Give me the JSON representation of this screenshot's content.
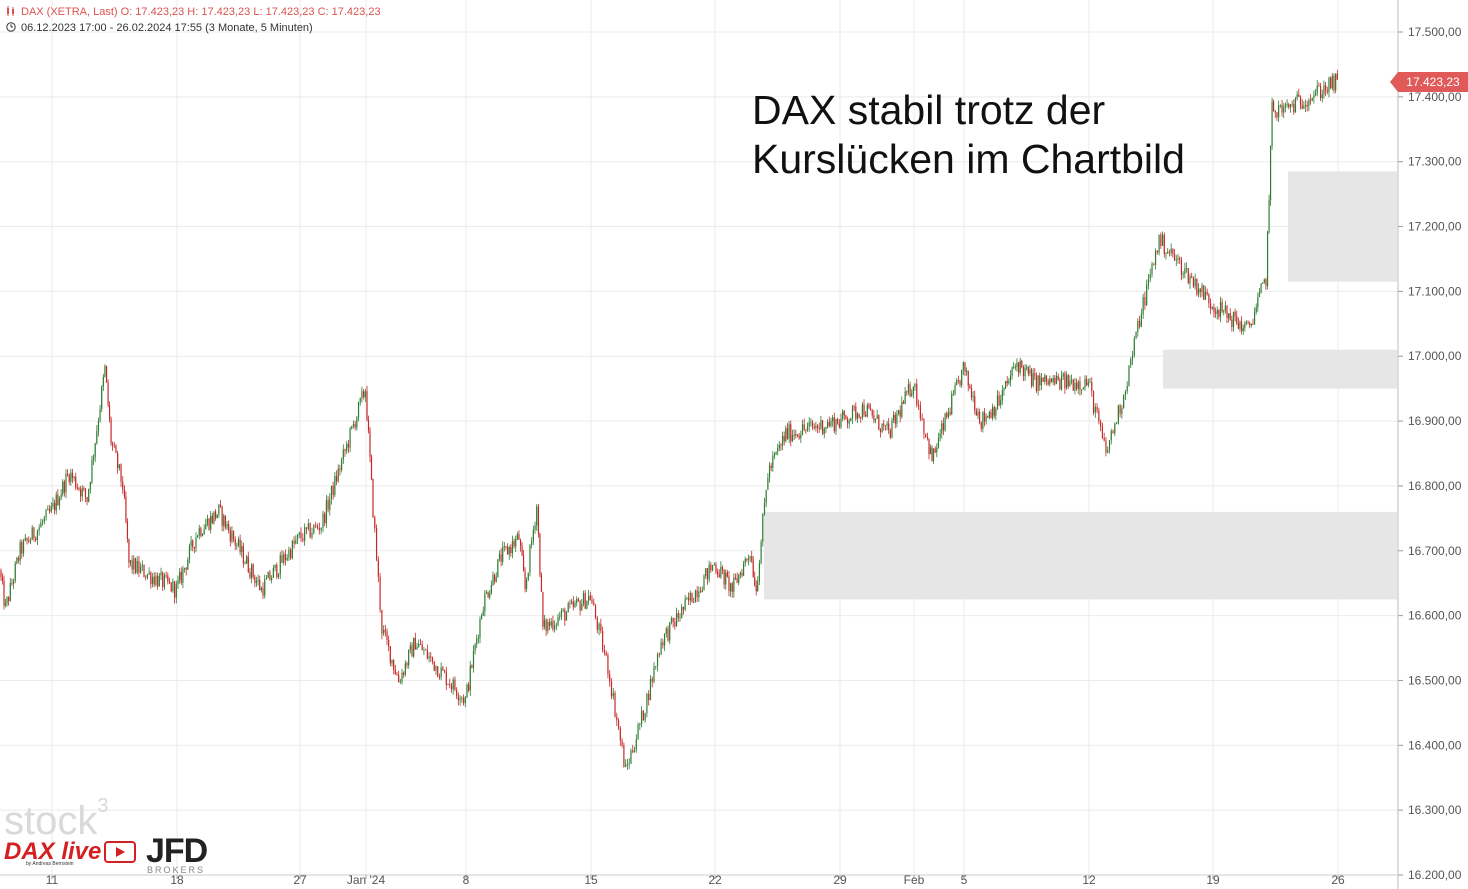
{
  "header": {
    "instrument_line": "DAX (XETRA, Last)  O: 17.423,23  H: 17.423,23  L: 17.423,23  C: 17.423,23",
    "range_line": "06.12.2023 17:00 - 26.02.2024 17:55   (3 Monate, 5 Minuten)"
  },
  "headline": "DAX stabil trotz der\nKurslücken im Chartbild",
  "last_price_badge": "17.423,23",
  "logos": {
    "stock3": "stock",
    "stock3_sup": "3",
    "daxlive": "DAX live",
    "daxlive_sub": "by Andreas Bernstein",
    "jfd": "JFD",
    "jfd_sub": "BROKERS"
  },
  "colors": {
    "up": "#2e7d32",
    "down": "#c62828",
    "gap_fill": "#e6e6e6",
    "grid": "#ebebeb",
    "badge": "#e05a5a"
  },
  "chart_data": {
    "type": "candlestick",
    "title": "DAX (XETRA, Last)",
    "period": "06.12.2023 17:00 - 26.02.2024 17:55",
    "interval": "5 Minuten",
    "ylim": [
      16200,
      17500
    ],
    "y_ticks": [
      "17.500,00",
      "17.400,00",
      "17.300,00",
      "17.200,00",
      "17.100,00",
      "17.000,00",
      "16.900,00",
      "16.800,00",
      "16.700,00",
      "16.600,00",
      "16.500,00",
      "16.400,00",
      "16.300,00",
      "16.200,00"
    ],
    "y_tick_values": [
      17500,
      17400,
      17300,
      17200,
      17100,
      17000,
      16900,
      16800,
      16700,
      16600,
      16500,
      16400,
      16300,
      16200
    ],
    "x_ticks": [
      {
        "label": "11",
        "date": "2023-12-11"
      },
      {
        "label": "18",
        "date": "2023-12-18"
      },
      {
        "label": "27",
        "date": "2023-12-27"
      },
      {
        "label": "Jan '24",
        "date": "2024-01-02"
      },
      {
        "label": "8",
        "date": "2024-01-08"
      },
      {
        "label": "15",
        "date": "2024-01-15"
      },
      {
        "label": "22",
        "date": "2024-01-22"
      },
      {
        "label": "29",
        "date": "2024-01-29"
      },
      {
        "label": "Feb",
        "date": "2024-02-01"
      },
      {
        "label": "5",
        "date": "2024-02-05"
      },
      {
        "label": "12",
        "date": "2024-02-12"
      },
      {
        "label": "19",
        "date": "2024-02-19"
      },
      {
        "label": "26",
        "date": "2024-02-26"
      }
    ],
    "price_path": [
      {
        "date": "2023-12-06",
        "price": 16670
      },
      {
        "date": "2023-12-06",
        "price": 16610
      },
      {
        "date": "2023-12-08",
        "price": 16700
      },
      {
        "date": "2023-12-11",
        "price": 16760
      },
      {
        "date": "2023-12-12",
        "price": 16820
      },
      {
        "date": "2023-12-13",
        "price": 16780
      },
      {
        "date": "2023-12-14",
        "price": 16980
      },
      {
        "date": "2023-12-14",
        "price": 16870
      },
      {
        "date": "2023-12-15",
        "price": 16800
      },
      {
        "date": "2023-12-15",
        "price": 16680
      },
      {
        "date": "2023-12-18",
        "price": 16640
      },
      {
        "date": "2023-12-19",
        "price": 16730
      },
      {
        "date": "2023-12-20",
        "price": 16760
      },
      {
        "date": "2023-12-21",
        "price": 16700
      },
      {
        "date": "2023-12-22",
        "price": 16640
      },
      {
        "date": "2023-12-27",
        "price": 16720
      },
      {
        "date": "2023-12-28",
        "price": 16730
      },
      {
        "date": "2023-12-29",
        "price": 16740
      },
      {
        "date": "2024-01-02",
        "price": 16950
      },
      {
        "date": "2024-01-02",
        "price": 16800
      },
      {
        "date": "2024-01-03",
        "price": 16580
      },
      {
        "date": "2024-01-04",
        "price": 16500
      },
      {
        "date": "2024-01-05",
        "price": 16560
      },
      {
        "date": "2024-01-08",
        "price": 16470
      },
      {
        "date": "2024-01-09",
        "price": 16620
      },
      {
        "date": "2024-01-10",
        "price": 16690
      },
      {
        "date": "2024-01-11",
        "price": 16720
      },
      {
        "date": "2024-01-11",
        "price": 16640
      },
      {
        "date": "2024-01-12",
        "price": 16770
      },
      {
        "date": "2024-01-12",
        "price": 16580
      },
      {
        "date": "2024-01-15",
        "price": 16630
      },
      {
        "date": "2024-01-16",
        "price": 16520
      },
      {
        "date": "2024-01-17",
        "price": 16360
      },
      {
        "date": "2024-01-18",
        "price": 16450
      },
      {
        "date": "2024-01-19",
        "price": 16560
      },
      {
        "date": "2024-01-22",
        "price": 16680
      },
      {
        "date": "2024-01-23",
        "price": 16640
      },
      {
        "date": "2024-01-24",
        "price": 16700
      },
      {
        "date": "2024-01-24",
        "price": 16640
      },
      {
        "date": "2024-01-25",
        "price": 16820
      },
      {
        "date": "2024-01-26",
        "price": 16880
      },
      {
        "date": "2024-01-29",
        "price": 16900
      },
      {
        "date": "2024-01-30",
        "price": 16920
      },
      {
        "date": "2024-01-31",
        "price": 16880
      },
      {
        "date": "2024-02-01",
        "price": 16960
      },
      {
        "date": "2024-02-02",
        "price": 16880
      },
      {
        "date": "2024-02-02",
        "price": 16840
      },
      {
        "date": "2024-02-05",
        "price": 16980
      },
      {
        "date": "2024-02-06",
        "price": 16900
      },
      {
        "date": "2024-02-07",
        "price": 16930
      },
      {
        "date": "2024-02-08",
        "price": 16990
      },
      {
        "date": "2024-02-09",
        "price": 16960
      },
      {
        "date": "2024-02-12",
        "price": 16960
      },
      {
        "date": "2024-02-13",
        "price": 16850
      },
      {
        "date": "2024-02-14",
        "price": 16940
      },
      {
        "date": "2024-02-15",
        "price": 17070
      },
      {
        "date": "2024-02-16",
        "price": 17180
      },
      {
        "date": "2024-02-19",
        "price": 17080
      },
      {
        "date": "2024-02-20",
        "price": 17060
      },
      {
        "date": "2024-02-21",
        "price": 17040
      },
      {
        "date": "2024-02-22",
        "price": 17120
      },
      {
        "date": "2024-02-22",
        "price": 17380
      },
      {
        "date": "2024-02-23",
        "price": 17380
      },
      {
        "date": "2024-02-26",
        "price": 17423
      }
    ],
    "gaps": [
      {
        "low": 16625,
        "high": 16760
      },
      {
        "low": 16950,
        "high": 17010
      },
      {
        "low": 17115,
        "high": 17285
      }
    ],
    "last": 17423.23
  }
}
